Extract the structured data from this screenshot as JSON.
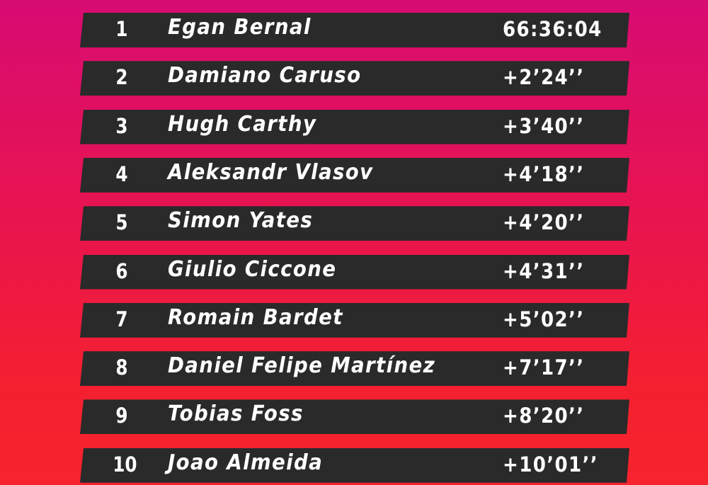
{
  "colors": {
    "background_top": "#d70c72",
    "background_bottom": "#f7232e",
    "bar": "#2a2a2a",
    "text": "#ffffff"
  },
  "standings": [
    {
      "position": "1",
      "rider": "Egan Bernal",
      "time": "66:36:04"
    },
    {
      "position": "2",
      "rider": "Damiano Caruso",
      "time": "+2’24’’"
    },
    {
      "position": "3",
      "rider": "Hugh Carthy",
      "time": "+3’40’’"
    },
    {
      "position": "4",
      "rider": "Aleksandr Vlasov",
      "time": "+4’18’’"
    },
    {
      "position": "5",
      "rider": "Simon Yates",
      "time": "+4’20’’"
    },
    {
      "position": "6",
      "rider": "Giulio Ciccone",
      "time": "+4’31’’"
    },
    {
      "position": "7",
      "rider": "Romain Bardet",
      "time": "+5’02’’"
    },
    {
      "position": "8",
      "rider": "Daniel Felipe Martínez",
      "time": "+7’17’’"
    },
    {
      "position": "9",
      "rider": "Tobias Foss",
      "time": "+8’20’’"
    },
    {
      "position": "10",
      "rider": "Joao Almeida",
      "time": "+10’01’’"
    }
  ]
}
